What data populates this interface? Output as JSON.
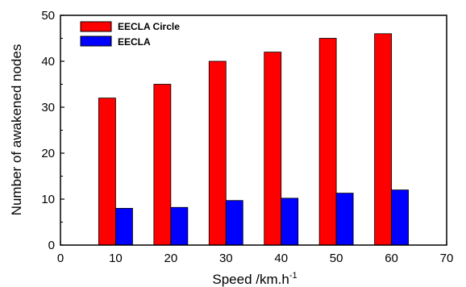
{
  "chart_data": {
    "type": "bar",
    "x": [
      10,
      20,
      30,
      40,
      50,
      60
    ],
    "xlabel": "Speed /km.h",
    "xlabel_superscript": "-1",
    "ylabel": "Number of awakened nodes",
    "xlim": [
      0,
      70
    ],
    "ylim": [
      0,
      50
    ],
    "x_ticks": [
      0,
      10,
      20,
      30,
      40,
      50,
      60,
      70
    ],
    "y_ticks": [
      0,
      10,
      20,
      30,
      40,
      50
    ],
    "grid": false,
    "legend_position": "top-left",
    "series": [
      {
        "name": "EECLA Circle",
        "color": "#ff0000",
        "values": [
          32,
          35,
          40,
          42,
          45,
          46
        ]
      },
      {
        "name": "EECLA",
        "color": "#0000ff",
        "values": [
          8,
          8.2,
          9.7,
          10.2,
          11.3,
          12
        ]
      }
    ]
  }
}
